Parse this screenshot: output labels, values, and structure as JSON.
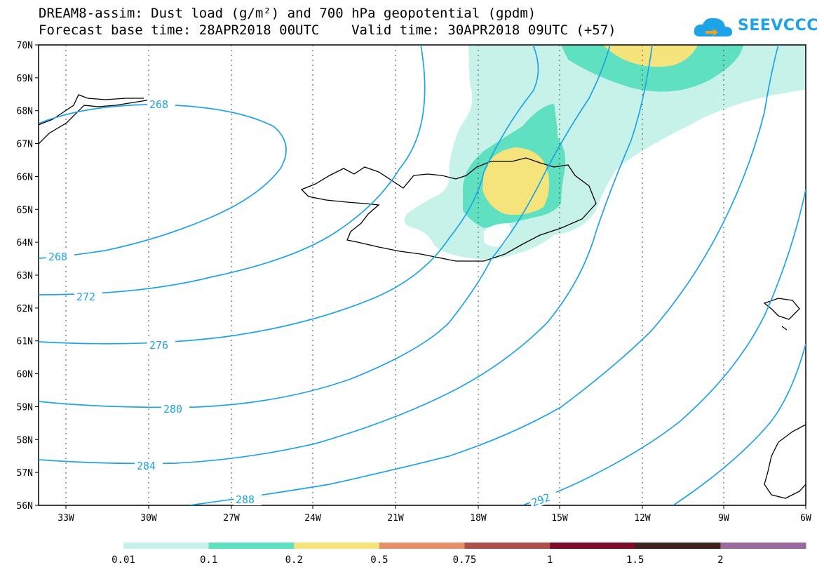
{
  "header": {
    "title_line1": "DREAM8-assim: Dust load (g/m²) and 700 hPa geopotential (gpdm)",
    "title_line2": "Forecast base time: 28APR2018 00UTC    Valid time: 30APR2018 09UTC (+57)",
    "logo_text": "SEEVCCC"
  },
  "map": {
    "lat_labels": [
      "70N",
      "69N",
      "68N",
      "67N",
      "66N",
      "65N",
      "64N",
      "63N",
      "62N",
      "61N",
      "60N",
      "59N",
      "58N",
      "57N",
      "56N"
    ],
    "lon_labels": [
      "33W",
      "30W",
      "27W",
      "24W",
      "21W",
      "18W",
      "15W",
      "12W",
      "9W",
      "6W"
    ],
    "contour_labels": [
      "268",
      "268",
      "272",
      "276",
      "280",
      "284",
      "288",
      "292"
    ],
    "contour_color": "#1ea3e8"
  },
  "colorbar": {
    "labels": [
      "0.01",
      "0.1",
      "0.2",
      "0.5",
      "0.75",
      "1",
      "1.5",
      "2"
    ],
    "colors": [
      "#c6f2ea",
      "#5fe0c0",
      "#f5e47c",
      "#e8906a",
      "#a9514a",
      "#7d0c2c",
      "#3d2418",
      "#9a6a9e"
    ]
  }
}
